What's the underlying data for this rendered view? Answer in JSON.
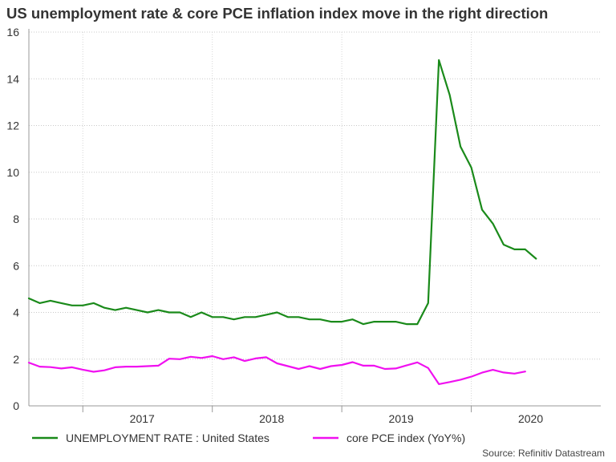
{
  "chart_data": {
    "type": "line",
    "title": "US unemployment rate & core PCE inflation index move in the right direction",
    "xlabel": "",
    "ylabel": "",
    "ylim": [
      0,
      16
    ],
    "yticks": [
      0,
      2,
      4,
      6,
      8,
      10,
      12,
      14,
      16
    ],
    "x_start": "2016-08",
    "x_end": "2021-01",
    "year_ticks": [
      "2017",
      "2018",
      "2019",
      "2020"
    ],
    "grid": true,
    "legend_position": "bottom",
    "series": [
      {
        "name": "UNEMPLOYMENT RATE : United States",
        "color": "#1a8a1a",
        "start": "2016-08",
        "values": [
          4.6,
          4.4,
          4.5,
          4.4,
          4.3,
          4.3,
          4.4,
          4.2,
          4.1,
          4.2,
          4.1,
          4.0,
          4.1,
          4.0,
          4.0,
          3.8,
          4.0,
          3.8,
          3.8,
          3.7,
          3.8,
          3.8,
          3.9,
          4.0,
          3.8,
          3.8,
          3.7,
          3.7,
          3.6,
          3.6,
          3.7,
          3.5,
          3.6,
          3.6,
          3.6,
          3.5,
          3.5,
          4.4,
          14.8,
          13.3,
          11.1,
          10.2,
          8.4,
          7.8,
          6.9,
          6.7,
          6.7,
          6.3
        ]
      },
      {
        "name": "core PCE index (YoY%)",
        "color": "#f010f0",
        "start": "2016-08",
        "values": [
          1.85,
          1.68,
          1.66,
          1.6,
          1.65,
          1.55,
          1.46,
          1.52,
          1.65,
          1.68,
          1.68,
          1.7,
          1.72,
          2.02,
          2.0,
          2.1,
          2.05,
          2.13,
          2.0,
          2.08,
          1.92,
          2.03,
          2.08,
          1.82,
          1.7,
          1.58,
          1.7,
          1.58,
          1.7,
          1.75,
          1.87,
          1.72,
          1.72,
          1.58,
          1.6,
          1.73,
          1.86,
          1.62,
          0.93,
          1.02,
          1.12,
          1.25,
          1.42,
          1.54,
          1.43,
          1.38,
          1.47
        ]
      }
    ]
  },
  "source": "Source: Refinitiv Datastream"
}
